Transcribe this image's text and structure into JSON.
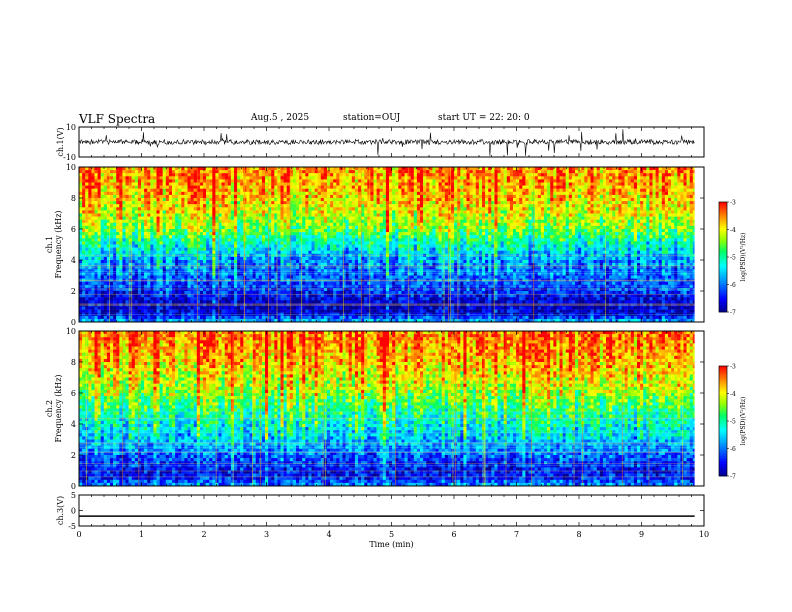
{
  "header": {
    "title": "VLF Spectra",
    "date": "Aug.5 , 2025",
    "station": "station=OUJ",
    "start": "start UT = 22: 20: 0"
  },
  "chart_data": [
    {
      "type": "line",
      "panel": "ch1-waveform",
      "ylabel": "ch.1(V)",
      "ylim": [
        -10,
        10
      ],
      "yticks": [
        "10",
        "-10"
      ],
      "xlim": [
        0,
        10
      ],
      "series": [
        {
          "values_description_level": 0,
          "trace_color": "#000000",
          "baseline": 0
        }
      ]
    },
    {
      "type": "heatmap",
      "panel": "ch1-spectrogram",
      "ylabel": "ch.1\nFrequency (kHz)",
      "ylabel_line1": "ch.1",
      "ylabel_line2": "Frequency (kHz)",
      "ylim": [
        0,
        10
      ],
      "yticks": [
        "0",
        "2",
        "4",
        "6",
        "8",
        "10"
      ],
      "xlim": [
        0,
        10
      ],
      "data_end_min": 9.85,
      "colorbar": {
        "label": "log(PSD)(V²/Hz)",
        "range": [
          -7,
          -3
        ],
        "ticks": [
          "-3",
          "-4",
          "-5",
          "-6",
          "-7"
        ]
      },
      "profile_khz": [
        0,
        0.5,
        1,
        1.5,
        2,
        2.5,
        3,
        3.5,
        4,
        4.5,
        5,
        5.5,
        6,
        7,
        8,
        9,
        10
      ],
      "profile_logpsd": [
        -5.6,
        -6.7,
        -6.8,
        -6.7,
        -6.3,
        -6.2,
        -6.1,
        -6.0,
        -5.8,
        -5.5,
        -5.2,
        -4.9,
        -4.5,
        -4.1,
        -3.8,
        -3.6,
        -3.5
      ]
    },
    {
      "type": "heatmap",
      "panel": "ch2-spectrogram",
      "ylabel_line1": "ch.2",
      "ylabel_line2": "Frequency (kHz)",
      "ylim": [
        0,
        10
      ],
      "yticks": [
        "0",
        "2",
        "4",
        "6",
        "8",
        "10"
      ],
      "xlim": [
        0,
        10
      ],
      "data_end_min": 9.85,
      "colorbar": {
        "label": "log(PSD)(V²/Hz)",
        "range": [
          -7,
          -3
        ],
        "ticks": [
          "-3",
          "-4",
          "-5",
          "-6",
          "-7"
        ]
      },
      "profile_khz": [
        0,
        0.5,
        1,
        1.5,
        2,
        2.5,
        3,
        3.5,
        4,
        4.5,
        5,
        5.5,
        6,
        7,
        8,
        9,
        10
      ],
      "profile_logpsd": [
        -5.8,
        -6.4,
        -6.5,
        -6.3,
        -6.1,
        -5.8,
        -5.6,
        -5.4,
        -5.2,
        -5.0,
        -4.8,
        -4.6,
        -4.3,
        -4.0,
        -3.7,
        -3.5,
        -3.4
      ]
    },
    {
      "type": "line",
      "panel": "ch3-waveform",
      "ylabel": "ch.3(V)",
      "ylim": [
        -5,
        5
      ],
      "yticks": [
        "5",
        "0",
        "-5"
      ],
      "xlim": [
        0,
        10
      ],
      "xlabel": "Time (min)",
      "xticks": [
        "0",
        "1",
        "2",
        "3",
        "4",
        "5",
        "6",
        "7",
        "8",
        "9",
        "10"
      ],
      "series": [
        {
          "constant_value": -1.8
        }
      ]
    }
  ],
  "colors": {
    "axis": "#000000",
    "background": "#ffffff"
  }
}
